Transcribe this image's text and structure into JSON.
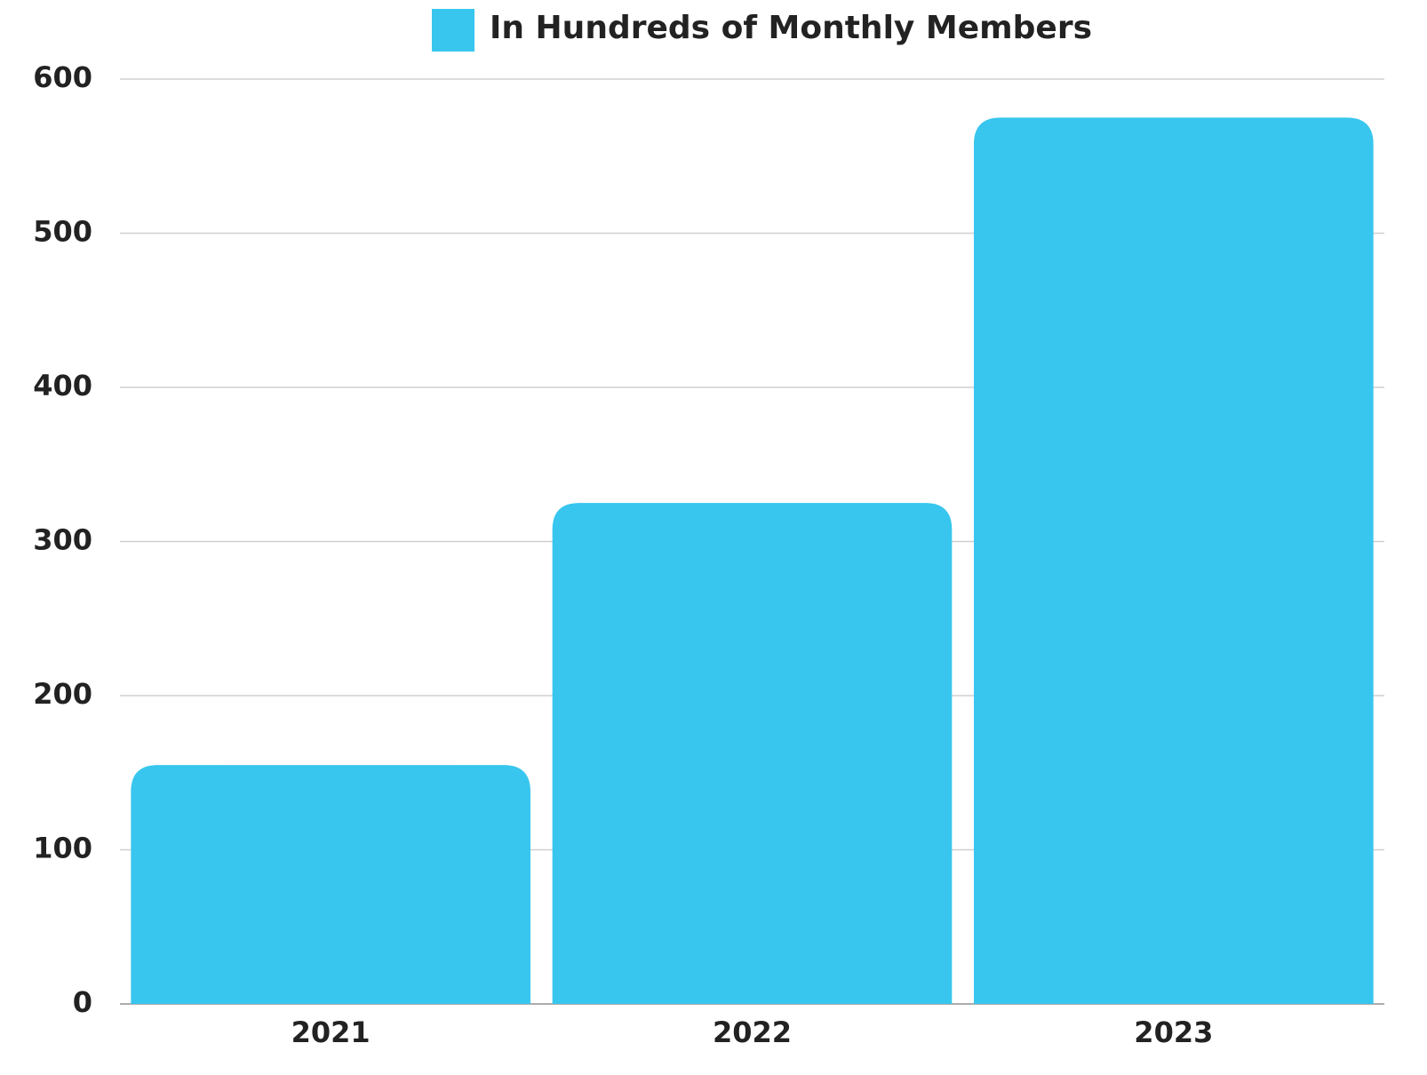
{
  "chart_data": {
    "type": "bar",
    "categories": [
      "2021",
      "2022",
      "2023"
    ],
    "series": [
      {
        "name": "In Hundreds of Monthly Members",
        "color": "#38c6ee",
        "values": [
          155,
          325,
          575
        ]
      }
    ],
    "ylim": [
      0,
      600
    ],
    "yticks": [
      0,
      100,
      200,
      300,
      400,
      500,
      600
    ],
    "grid": true,
    "legend": "top"
  }
}
